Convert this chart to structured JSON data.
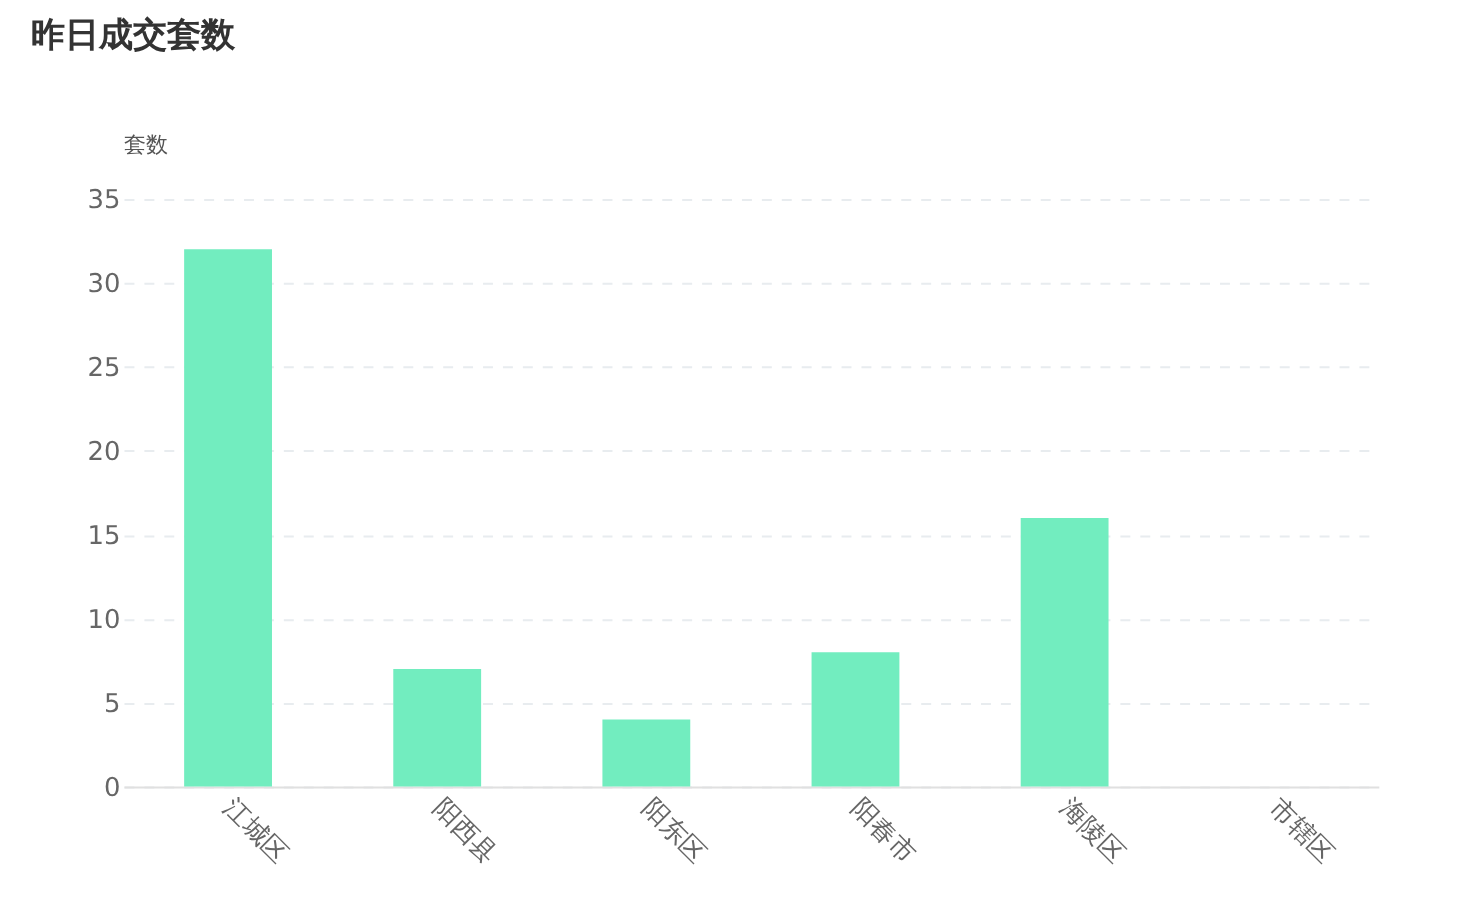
{
  "chart_data": {
    "type": "bar",
    "title": "昨日成交套数",
    "ylabel": "套数",
    "categories": [
      "江城区",
      "阳西县",
      "阳东区",
      "阳春市",
      "海陵区",
      "市辖区"
    ],
    "values": [
      32,
      7,
      4,
      8,
      16,
      0
    ],
    "color": "#72edbf",
    "ylim": [
      0,
      35
    ],
    "yticks": [
      0,
      5,
      10,
      15,
      20,
      25,
      30,
      35
    ],
    "grid": "y"
  }
}
